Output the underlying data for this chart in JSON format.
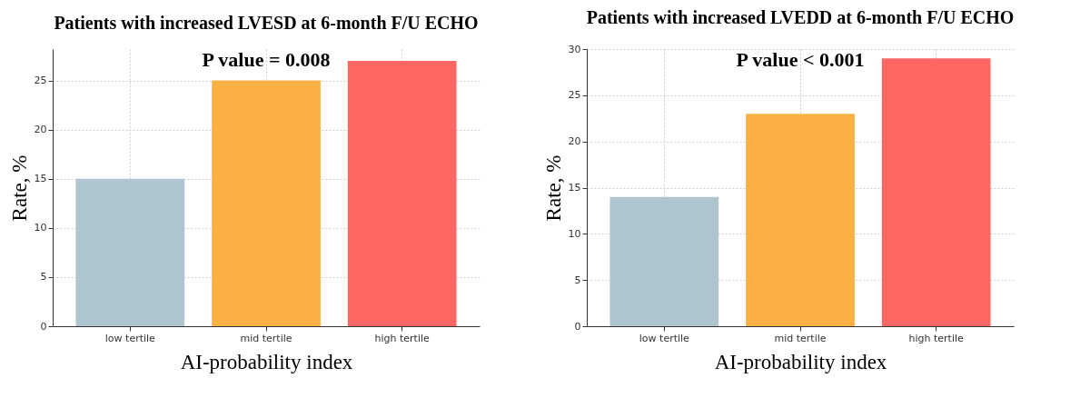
{
  "chart_data": [
    {
      "type": "bar",
      "title": "Patients with increased LVESD at 6-month F/U ECHO",
      "xlabel": "AI-probability index",
      "ylabel": "Rate, %",
      "annotations": [
        "P value = 0.008"
      ],
      "categories": [
        "low tertile",
        "mid tertile",
        "high tertile"
      ],
      "values": [
        15,
        25,
        27
      ],
      "colors": [
        "#aec4ce",
        "#fbb045",
        "#fe6663"
      ],
      "ylim": [
        0,
        28.2
      ],
      "yticks": [
        0,
        5,
        10,
        15,
        20,
        25
      ],
      "grid": true
    },
    {
      "type": "bar",
      "title": "Patients with increased LVEDD at 6-month F/U ECHO",
      "xlabel": "AI-probability index",
      "ylabel": "Rate, %",
      "annotations": [
        "P value < 0.001"
      ],
      "categories": [
        "low tertile",
        "mid tertile",
        "high tertile"
      ],
      "values": [
        14,
        23,
        29
      ],
      "colors": [
        "#aec4ce",
        "#fbb045",
        "#fe6663"
      ],
      "ylim": [
        0,
        30
      ],
      "yticks": [
        0,
        5,
        10,
        15,
        20,
        25,
        30
      ],
      "grid": true
    }
  ]
}
